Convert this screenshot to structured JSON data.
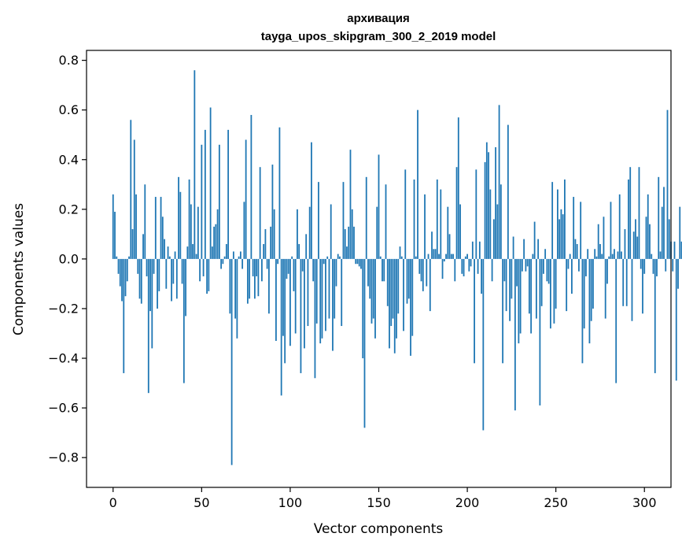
{
  "chart_data": {
    "type": "bar",
    "title": "архивация",
    "subtitle": "tayga_upos_skipgram_300_2_2019 model",
    "xlabel": "Vector components",
    "ylabel": "Components values",
    "xlim": [
      -15,
      315
    ],
    "ylim": [
      -0.92,
      0.84
    ],
    "xticks": [
      0,
      50,
      100,
      150,
      200,
      250,
      300
    ],
    "yticks": [
      -0.8,
      -0.6,
      -0.4,
      -0.2,
      0.0,
      0.2,
      0.4,
      0.6,
      0.8
    ],
    "xtick_labels": [
      "0",
      "50",
      "100",
      "150",
      "200",
      "250",
      "300"
    ],
    "ytick_labels": [
      "−0.8",
      "−0.6",
      "−0.4",
      "−0.2",
      "0.0",
      "0.2",
      "0.4",
      "0.6",
      "0.8"
    ],
    "bar_color": "#1f77b4",
    "values": [
      0.26,
      0.19,
      0.01,
      -0.06,
      -0.11,
      -0.17,
      -0.46,
      -0.15,
      -0.09,
      0.01,
      0.56,
      0.12,
      0.48,
      0.26,
      -0.06,
      -0.16,
      -0.18,
      0.1,
      0.3,
      -0.07,
      -0.54,
      -0.21,
      -0.36,
      -0.06,
      0.25,
      -0.2,
      -0.13,
      0.25,
      0.17,
      0.08,
      -0.12,
      0.05,
      0.01,
      -0.17,
      -0.1,
      0.03,
      -0.16,
      0.33,
      0.27,
      -0.1,
      -0.5,
      -0.23,
      0.05,
      0.32,
      0.22,
      0.06,
      0.76,
      0.02,
      0.21,
      -0.09,
      0.46,
      -0.07,
      0.52,
      -0.14,
      -0.13,
      0.61,
      0.05,
      0.13,
      0.14,
      0.2,
      0.46,
      -0.04,
      -0.02,
      0.01,
      0.06,
      0.52,
      -0.22,
      -0.83,
      0.03,
      -0.24,
      -0.32,
      0.01,
      0.03,
      -0.04,
      0.23,
      0.48,
      -0.18,
      -0.16,
      0.58,
      -0.07,
      -0.16,
      -0.07,
      -0.15,
      0.37,
      -0.09,
      0.06,
      0.12,
      -0.04,
      -0.22,
      0.13,
      0.38,
      0.2,
      -0.33,
      -0.02,
      0.53,
      -0.55,
      -0.31,
      -0.42,
      -0.08,
      -0.06,
      -0.35,
      0.01,
      -0.13,
      -0.3,
      0.2,
      0.06,
      -0.46,
      -0.05,
      -0.36,
      0.1,
      -0.27,
      0.21,
      0.47,
      -0.09,
      -0.48,
      -0.26,
      0.31,
      -0.34,
      -0.32,
      -0.02,
      -0.29,
      0.01,
      -0.24,
      0.22,
      -0.37,
      -0.24,
      -0.11,
      0.02,
      0.01,
      -0.27,
      0.31,
      0.12,
      0.05,
      0.13,
      0.44,
      0.2,
      0.13,
      -0.02,
      -0.02,
      -0.03,
      -0.04,
      -0.4,
      -0.68,
      0.33,
      -0.11,
      -0.16,
      -0.26,
      -0.24,
      -0.32,
      0.21,
      0.42,
      0.01,
      -0.09,
      -0.09,
      0.3,
      -0.19,
      -0.36,
      -0.27,
      -0.24,
      -0.38,
      -0.32,
      -0.22,
      0.05,
      0.01,
      -0.29,
      0.36,
      -0.18,
      -0.16,
      -0.39,
      -0.31,
      0.32,
      0.01,
      0.6,
      -0.06,
      -0.09,
      -0.13,
      0.26,
      -0.11,
      0.02,
      -0.21,
      0.11,
      0.04,
      0.04,
      0.32,
      0.02,
      0.28,
      -0.08,
      -0.01,
      0.02,
      0.21,
      0.1,
      0.02,
      0.02,
      -0.09,
      0.37,
      0.57,
      0.22,
      -0.06,
      -0.07,
      0.01,
      0.02,
      -0.05,
      -0.03,
      0.07,
      -0.42,
      0.36,
      -0.06,
      0.07,
      -0.14,
      -0.69,
      0.39,
      0.47,
      0.43,
      0.28,
      -0.09,
      0.16,
      0.45,
      0.22,
      0.62,
      0.3,
      -0.42,
      -0.09,
      -0.21,
      0.54,
      -0.25,
      -0.16,
      0.09,
      -0.61,
      -0.11,
      -0.34,
      -0.3,
      -0.05,
      0.08,
      -0.05,
      -0.03,
      -0.22,
      -0.3,
      0.02,
      0.15,
      -0.24,
      0.08,
      -0.59,
      -0.19,
      -0.06,
      0.04,
      -0.09,
      -0.1,
      -0.28,
      0.31,
      -0.26,
      -0.2,
      0.28,
      0.16,
      0.2,
      0.18,
      0.32,
      -0.21,
      -0.04,
      0.02,
      -0.14,
      0.25,
      0.08,
      0.06,
      -0.05,
      0.23,
      -0.42,
      -0.28,
      -0.07,
      0.04,
      -0.34,
      -0.25,
      -0.2,
      0.04,
      0.01,
      0.14,
      0.06,
      0.02,
      0.17,
      -0.24,
      -0.1,
      0.01,
      0.23,
      0.02,
      0.04,
      -0.5,
      0.03,
      0.26,
      0.03,
      -0.19,
      0.12,
      -0.19,
      0.32,
      0.37,
      -0.25,
      0.11,
      0.16,
      0.09,
      0.37,
      -0.04,
      -0.22,
      -0.06,
      0.17,
      0.26,
      0.14,
      0.02,
      -0.06,
      -0.46,
      -0.07,
      0.33,
      0.03,
      0.21,
      0.29,
      -0.05,
      0.6,
      0.16,
      0.07,
      -0.05,
      0.07,
      -0.49,
      -0.12,
      0.21,
      0.07,
      0.06
    ]
  }
}
